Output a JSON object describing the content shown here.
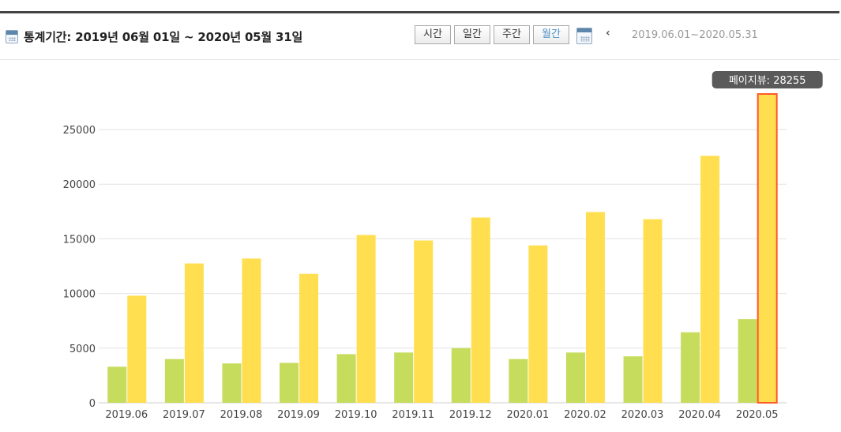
{
  "header": {
    "title": "통계기간: 2019년 06월 01일 ~ 2020년 05월 31일",
    "title_icon": "calendar-icon",
    "buttons": [
      {
        "label": "시간",
        "active": false
      },
      {
        "label": "일간",
        "active": false
      },
      {
        "label": "주간",
        "active": false
      },
      {
        "label": "월간",
        "active": true
      }
    ],
    "date_icon": "calendar-icon",
    "prev_icon": "chevron-left-icon",
    "prev_glyph": "‹",
    "range": "2019.06.01~2020.05.31"
  },
  "colors": {
    "series_green": "#c5dc5c",
    "series_yellow": "#ffdf4f",
    "highlight_border": "#ff5a2a",
    "tooltip_bg": "#5a5a5a",
    "grid": "#e2e2e2"
  },
  "chart_data": {
    "type": "bar",
    "categories": [
      "2019.06",
      "2019.07",
      "2019.08",
      "2019.09",
      "2019.10",
      "2019.11",
      "2019.12",
      "2020.01",
      "2020.02",
      "2020.03",
      "2020.04",
      "2020.05"
    ],
    "series": [
      {
        "values": [
          3300,
          4000,
          3600,
          3650,
          4450,
          4600,
          5000,
          4000,
          4600,
          4250,
          6450,
          7650
        ]
      },
      {
        "values": [
          9800,
          12750,
          13200,
          11800,
          15350,
          14850,
          16950,
          14400,
          17450,
          16800,
          22600,
          28255
        ]
      }
    ],
    "yticks": [
      0,
      5000,
      10000,
      15000,
      20000,
      25000
    ],
    "ylim": [
      0,
      28255
    ],
    "grid": true,
    "highlight": {
      "category_index": 11,
      "series_index": 1
    },
    "tooltip": "페이지뷰: 28255"
  }
}
